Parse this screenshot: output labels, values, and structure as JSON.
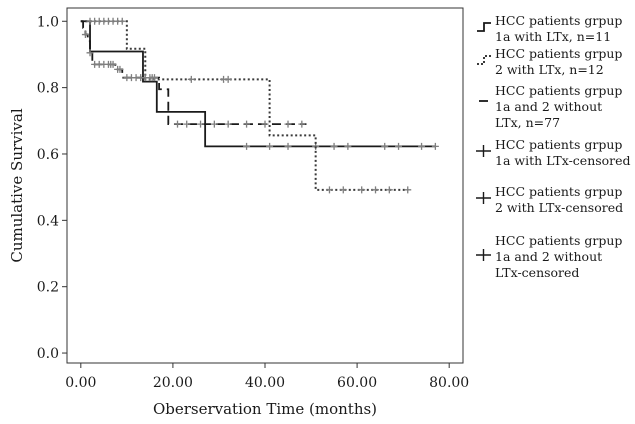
{
  "chart_data": {
    "type": "line",
    "xlabel": "Oberservation Time (months)",
    "ylabel": "Cumulative Survival",
    "xlim": [
      -3,
      83
    ],
    "ylim": [
      -0.03,
      1.04
    ],
    "x_ticks": [
      0,
      20,
      40,
      60,
      80
    ],
    "x_tick_labels": [
      "0.00",
      "20.00",
      "40.00",
      "60.00",
      "80.00"
    ],
    "y_ticks": [
      0,
      0.2,
      0.4,
      0.6,
      0.8,
      1.0
    ],
    "y_tick_labels": [
      "0.0",
      "0.2",
      "0.4",
      "0.6",
      "0.8",
      "1.0"
    ],
    "grid": false,
    "legend_position": "right",
    "series": [
      {
        "name": "HCC patients grpup 1a with LTx, n=11",
        "style": "solid",
        "color": "#1a1a1a",
        "steps": [
          [
            0,
            1.0
          ],
          [
            2,
            0.909
          ],
          [
            13.5,
            0.818
          ],
          [
            16.5,
            0.727
          ],
          [
            27,
            0.623
          ],
          [
            77,
            0.623
          ]
        ],
        "censored": [
          36,
          41,
          45,
          51,
          55,
          58,
          66,
          69,
          74,
          77
        ]
      },
      {
        "name": "HCC patients grpup 2 with LTx, n=12",
        "style": "dotted",
        "color": "#3a3a3a",
        "steps": [
          [
            0,
            1.0
          ],
          [
            10,
            0.917
          ],
          [
            14,
            0.825
          ],
          [
            41,
            0.656
          ],
          [
            51,
            0.492
          ],
          [
            71,
            0.492
          ]
        ],
        "censored": [
          2,
          3,
          4,
          5,
          6,
          7,
          8,
          9,
          24,
          31,
          32,
          54,
          57,
          61,
          64,
          67,
          71
        ]
      },
      {
        "name": "HCC patients grpup 1a and 2 without LTx, n=77",
        "style": "dashed",
        "color": "#1a1a1a",
        "steps": [
          [
            0,
            1.0
          ],
          [
            0.5,
            0.98
          ],
          [
            1,
            0.96
          ],
          [
            1.5,
            0.94
          ],
          [
            2,
            0.905
          ],
          [
            2.5,
            0.87
          ],
          [
            7.5,
            0.855
          ],
          [
            9,
            0.83
          ],
          [
            17,
            0.795
          ],
          [
            19,
            0.69
          ],
          [
            49,
            0.69
          ]
        ],
        "censored": [
          1,
          2,
          3,
          4,
          5,
          6,
          6.5,
          7,
          8,
          8.5,
          10,
          11,
          12,
          13,
          14,
          15,
          15.5,
          16,
          21,
          23,
          26,
          29,
          32,
          36,
          40,
          45,
          48
        ]
      }
    ],
    "legend_entries": [
      {
        "label_lines": [
          "HCC patients grpup",
          "1a with LTx, ",
          "n",
          "=11"
        ],
        "lines": [
          "HCC patients grpup",
          "1a with LTx, n=11"
        ],
        "marker": "step-solid"
      },
      {
        "lines": [
          "HCC patients grpup",
          "2 with LTx, n=12"
        ],
        "marker": "step-dotted"
      },
      {
        "lines": [
          "HCC patients grpup",
          "1a and 2 without",
          "LTx, n=77"
        ],
        "marker": "dash"
      },
      {
        "lines": [
          "HCC patients grpup",
          "1a with LTx-censored"
        ],
        "marker": "plus"
      },
      {
        "lines": [
          "HCC patients grpup",
          "2 with LTx-censored"
        ],
        "marker": "plus"
      },
      {
        "lines": [
          "HCC patients grpup",
          "1a and 2 without",
          "LTx-censored"
        ],
        "marker": "plus"
      }
    ]
  }
}
